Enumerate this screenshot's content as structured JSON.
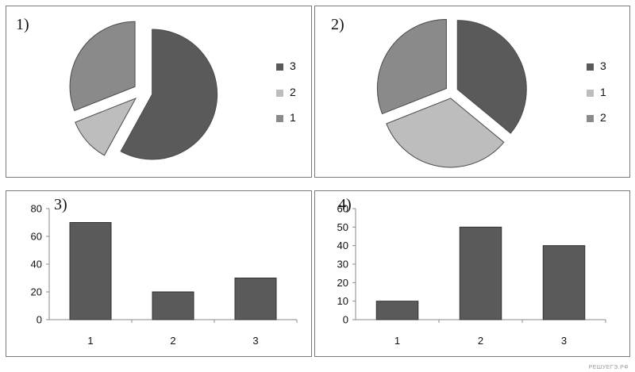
{
  "colors": {
    "dark": "#5a5a5a",
    "medium": "#8a8a8a",
    "light": "#bdbdbd",
    "stroke": "#4a4a4a",
    "axis": "#8a8a8a"
  },
  "watermark": "РЕШУЕГЭ.РФ",
  "chart_data": [
    {
      "type": "pie",
      "panel_label": "1)",
      "slices": [
        {
          "label": "3",
          "value": 58,
          "color": "#5a5a5a"
        },
        {
          "label": "2",
          "value": 11,
          "color": "#bdbdbd"
        },
        {
          "label": "1",
          "value": 31,
          "color": "#8a8a8a"
        }
      ],
      "legend": [
        {
          "label": "3",
          "color": "#5a5a5a"
        },
        {
          "label": "2",
          "color": "#bdbdbd"
        },
        {
          "label": "1",
          "color": "#8a8a8a"
        }
      ],
      "legend_placement": "right"
    },
    {
      "type": "pie",
      "panel_label": "2)",
      "slices": [
        {
          "label": "3",
          "value": 36,
          "color": "#5a5a5a"
        },
        {
          "label": "1",
          "value": 33,
          "color": "#bdbdbd"
        },
        {
          "label": "2",
          "value": 31,
          "color": "#8a8a8a"
        }
      ],
      "legend": [
        {
          "label": "3",
          "color": "#5a5a5a"
        },
        {
          "label": "1",
          "color": "#bdbdbd"
        },
        {
          "label": "2",
          "color": "#8a8a8a"
        }
      ],
      "legend_placement": "right"
    },
    {
      "type": "bar",
      "panel_label": "3)",
      "categories": [
        "1",
        "2",
        "3"
      ],
      "values": [
        70,
        20,
        30
      ],
      "ylim": [
        0,
        80
      ],
      "yticks": [
        "0",
        "20",
        "40",
        "60",
        "80"
      ],
      "grid": false
    },
    {
      "type": "bar",
      "panel_label": "4)",
      "categories": [
        "1",
        "2",
        "3"
      ],
      "values": [
        10,
        50,
        40
      ],
      "ylim": [
        0,
        60
      ],
      "yticks": [
        "0",
        "10",
        "20",
        "30",
        "40",
        "50",
        "60"
      ],
      "grid": false
    }
  ]
}
